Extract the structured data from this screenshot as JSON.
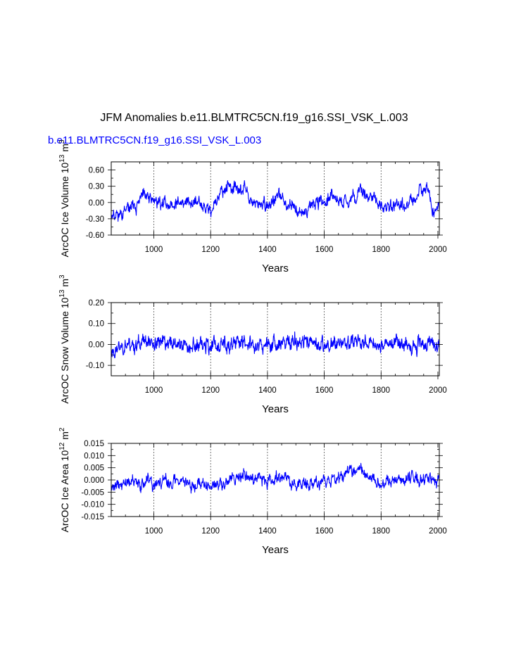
{
  "page": {
    "title": "JFM Anomalies b.e11.BLMTRC5CN.f19_g16.SSI_VSK_L.003",
    "subtitle": "b.e11.BLMTRC5CN.f19_g16.SSI_VSK_L.003"
  },
  "colors": {
    "series": "#0000ff",
    "axis": "#000000",
    "grid": "#555555"
  },
  "chart_data": [
    {
      "type": "line",
      "xlabel": "Years",
      "ylabel": "ArcOC Ice Volume 10^13 m^3",
      "ylabel_parts": {
        "base": "ArcOC Ice Volume 10",
        "exp1": "13",
        "mid": " m",
        "exp2": "3"
      },
      "xlim": [
        850,
        2005
      ],
      "ylim": [
        -0.6,
        0.75
      ],
      "xticks": [
        1000,
        1200,
        1400,
        1600,
        1800,
        2000
      ],
      "xtick_labels": [
        "1000",
        "1200",
        "1400",
        "1600",
        "1800",
        "2000"
      ],
      "yticks": [
        -0.6,
        -0.3,
        0.0,
        0.3,
        0.6
      ],
      "ytick_labels": [
        "-0.60",
        "-0.30",
        "0.00",
        "0.30",
        "0.60"
      ],
      "grid_x": [
        1000,
        1200,
        1400,
        1600,
        1800
      ],
      "series": [
        {
          "name": "Ice Volume",
          "x": [
            850,
            2005,
            1
          ],
          "amplitude": 0.12,
          "noise_sd": 0.13,
          "seed": 11,
          "anchors": [
            [
              850,
              -0.2
            ],
            [
              880,
              -0.22
            ],
            [
              940,
              -0.05
            ],
            [
              960,
              0.1
            ],
            [
              1000,
              0.05
            ],
            [
              1050,
              -0.05
            ],
            [
              1100,
              0.0
            ],
            [
              1150,
              0.0
            ],
            [
              1200,
              -0.15
            ],
            [
              1220,
              0.05
            ],
            [
              1260,
              0.3
            ],
            [
              1300,
              0.2
            ],
            [
              1320,
              0.3
            ],
            [
              1340,
              0.0
            ],
            [
              1400,
              -0.05
            ],
            [
              1440,
              0.1
            ],
            [
              1500,
              -0.1
            ],
            [
              1530,
              -0.2
            ],
            [
              1560,
              0.0
            ],
            [
              1620,
              0.05
            ],
            [
              1660,
              0.0
            ],
            [
              1700,
              0.1
            ],
            [
              1740,
              0.2
            ],
            [
              1780,
              0.05
            ],
            [
              1800,
              -0.1
            ],
            [
              1850,
              0.0
            ],
            [
              1900,
              -0.05
            ],
            [
              1960,
              0.3
            ],
            [
              1985,
              -0.2
            ],
            [
              2005,
              0.0
            ]
          ]
        }
      ]
    },
    {
      "type": "line",
      "xlabel": "Years",
      "ylabel": "ArcOC Snow Volume 10^13 m^3",
      "ylabel_parts": {
        "base": "ArcOC Snow Volume 10",
        "exp1": "13",
        "mid": " m",
        "exp2": "3"
      },
      "xlim": [
        850,
        2005
      ],
      "ylim": [
        -0.15,
        0.2
      ],
      "xticks": [
        1000,
        1200,
        1400,
        1600,
        1800,
        2000
      ],
      "xtick_labels": [
        "1000",
        "1200",
        "1400",
        "1600",
        "1800",
        "2000"
      ],
      "yticks": [
        -0.1,
        0.0,
        0.1,
        0.2
      ],
      "ytick_labels": [
        "-0.10",
        "0.00",
        "0.10",
        "0.20"
      ],
      "grid_x": [
        1000,
        1200,
        1400,
        1600,
        1800
      ],
      "series": [
        {
          "name": "Snow Volume",
          "x": [
            850,
            2005,
            1
          ],
          "amplitude": 0.01,
          "noise_sd": 0.04,
          "seed": 23,
          "anchors": [
            [
              850,
              -0.03
            ],
            [
              900,
              0.0
            ],
            [
              1000,
              0.01
            ],
            [
              1100,
              0.0
            ],
            [
              1200,
              -0.01
            ],
            [
              1300,
              0.01
            ],
            [
              1400,
              0.0
            ],
            [
              1500,
              0.01
            ],
            [
              1600,
              0.0
            ],
            [
              1700,
              0.01
            ],
            [
              1800,
              0.0
            ],
            [
              1900,
              0.01
            ],
            [
              2005,
              0.0
            ]
          ]
        }
      ]
    },
    {
      "type": "line",
      "xlabel": "Years",
      "ylabel": "ArcOC Ice Area 10^12 m^2",
      "ylabel_parts": {
        "base": "ArcOC Ice Area 10",
        "exp1": "12",
        "mid": " m",
        "exp2": "2"
      },
      "xlim": [
        850,
        2005
      ],
      "ylim": [
        -0.015,
        0.015
      ],
      "xticks": [
        1000,
        1200,
        1400,
        1600,
        1800,
        2000
      ],
      "xtick_labels": [
        "1000",
        "1200",
        "1400",
        "1600",
        "1800",
        "2000"
      ],
      "yticks": [
        -0.015,
        -0.01,
        -0.005,
        0.0,
        0.005,
        0.01,
        0.015
      ],
      "ytick_labels": [
        "-0.015",
        "-0.010",
        "-0.005",
        "0.000",
        "0.005",
        "0.010",
        "0.015"
      ],
      "grid_x": [
        1000,
        1200,
        1400,
        1600,
        1800
      ],
      "series": [
        {
          "name": "Ice Area",
          "x": [
            850,
            2005,
            1
          ],
          "amplitude": 0.001,
          "noise_sd": 0.0028,
          "seed": 37,
          "anchors": [
            [
              850,
              -0.002
            ],
            [
              950,
              -0.001
            ],
            [
              1000,
              -0.002
            ],
            [
              1100,
              0.0
            ],
            [
              1200,
              -0.003
            ],
            [
              1300,
              0.002
            ],
            [
              1400,
              0.0
            ],
            [
              1450,
              0.002
            ],
            [
              1500,
              -0.002
            ],
            [
              1600,
              -0.001
            ],
            [
              1700,
              0.004
            ],
            [
              1750,
              0.002
            ],
            [
              1800,
              -0.002
            ],
            [
              1900,
              0.001
            ],
            [
              2005,
              0.0
            ]
          ]
        }
      ]
    }
  ]
}
